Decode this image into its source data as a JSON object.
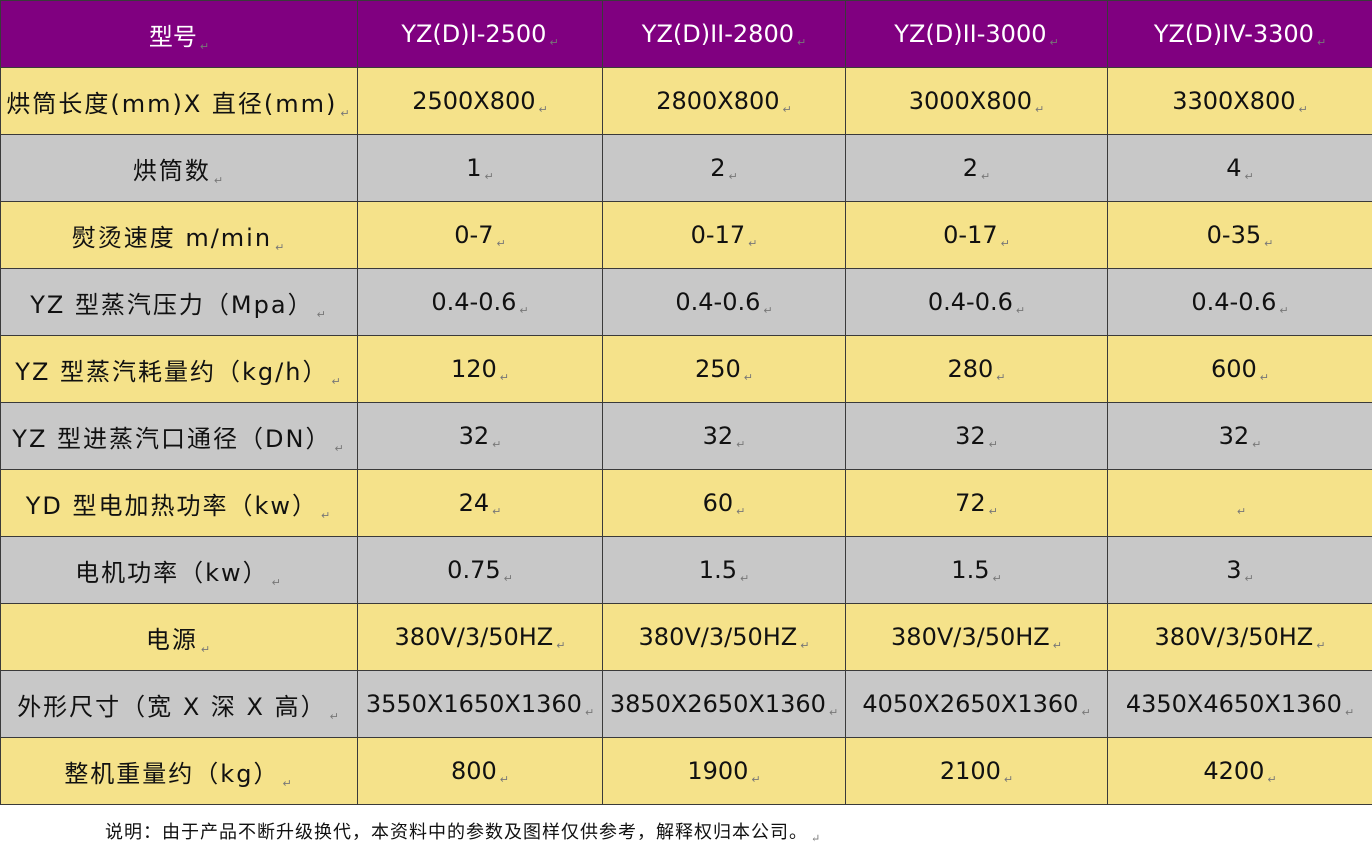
{
  "table": {
    "header": {
      "label": "型号",
      "models": [
        "YZ(D)I-2500",
        "YZ(D)II-2800",
        "YZ(D)II-3000",
        "YZ(D)IV-3300"
      ]
    },
    "rows": [
      {
        "label": "烘筒长度(mm)X 直径(mm)",
        "values": [
          "2500X800",
          "2800X800",
          "3000X800",
          "3300X800"
        ]
      },
      {
        "label": "烘筒数",
        "values": [
          "1",
          "2",
          "2",
          "4"
        ]
      },
      {
        "label": "熨烫速度 m/min",
        "values": [
          "0-7",
          "0-17",
          "0-17",
          "0-35"
        ]
      },
      {
        "label": "YZ 型蒸汽压力（Mpa）",
        "values": [
          "0.4-0.6",
          "0.4-0.6",
          "0.4-0.6",
          "0.4-0.6"
        ]
      },
      {
        "label": "YZ 型蒸汽耗量约（kg/h）",
        "values": [
          "120",
          "250",
          "280",
          "600"
        ]
      },
      {
        "label": "YZ 型进蒸汽口通径（DN）",
        "values": [
          "32",
          "32",
          "32",
          "32"
        ]
      },
      {
        "label": "YD 型电加热功率（kw）",
        "values": [
          "24",
          "60",
          "72",
          ""
        ]
      },
      {
        "label": "电机功率（kw）",
        "values": [
          "0.75",
          "1.5",
          "1.5",
          "3"
        ]
      },
      {
        "label": "电源",
        "values": [
          "380V/3/50HZ",
          "380V/3/50HZ",
          "380V/3/50HZ",
          "380V/3/50HZ"
        ]
      },
      {
        "label": "外形尺寸（宽 X 深 X 高）",
        "values": [
          "3550X1650X1360",
          "3850X2650X1360",
          "4050X2650X1360",
          "4350X4650X1360"
        ]
      },
      {
        "label": "整机重量约（kg）",
        "values": [
          "800",
          "1900",
          "2100",
          "4200"
        ]
      }
    ]
  },
  "footnote": "说明：由于产品不断升级换代，本资料中的参数及图样仅供参考，解释权归本公司。",
  "paragraph_mark": "↵",
  "colors": {
    "header_bg": "#800080",
    "header_text": "#ffffff",
    "row_odd_bg": "#f5e28a",
    "row_even_bg": "#c8c8c8"
  }
}
